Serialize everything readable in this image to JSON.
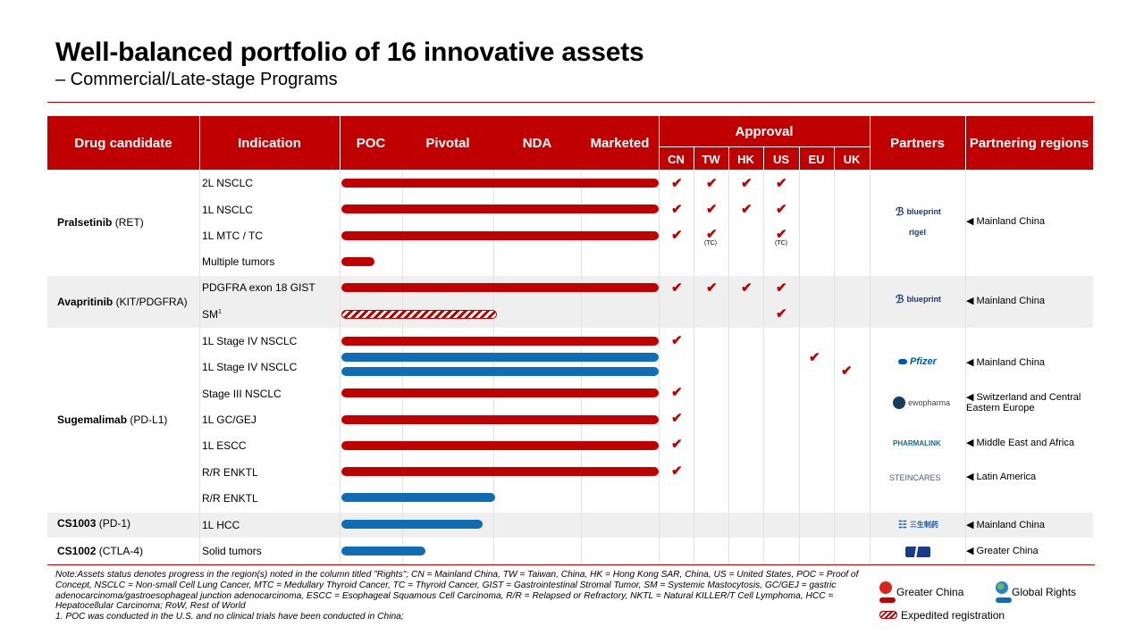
{
  "title": "Well-balanced portfolio of 16 innovative assets",
  "subtitle": "– Commercial/Late-stage Programs",
  "header": {
    "drug_candidate": "Drug candidate",
    "indication": "Indication",
    "poc": "POC",
    "pivotal": "Pivotal",
    "nda": "NDA",
    "marketed": "Marketed",
    "approval": "Approval",
    "regions": [
      "CN",
      "TW",
      "HK",
      "US",
      "EU",
      "UK"
    ],
    "partners": "Partners",
    "partnering_regions": "Partnering regions"
  },
  "drugs": [
    {
      "name": "Pralsetinib",
      "target": "(RET)"
    },
    {
      "name": "Avapritinib",
      "target": "(KIT/PDGFRA)"
    },
    {
      "name": "Sugemalimab",
      "target": "(PD-L1)"
    },
    {
      "name": "CS1003",
      "target": "(PD-1)"
    },
    {
      "name": "CS1002",
      "target": "(CTLA-4)"
    }
  ],
  "indications": [
    {
      "label": "2L NSCLC",
      "progress": "Marketed",
      "approval": [
        "CN",
        "TW",
        "HK",
        "US"
      ]
    },
    {
      "label": "1L NSCLC",
      "progress": "Marketed",
      "approval": [
        "CN",
        "TW",
        "HK",
        "US"
      ]
    },
    {
      "label": "1L MTC / TC",
      "progress": "Marketed",
      "approval": [
        "CN",
        "TW (TC)",
        "US (TC)"
      ]
    },
    {
      "label": "Multiple tumors",
      "progress": "POC"
    },
    {
      "label": "PDGFRA exon 18 GIST",
      "progress": "Marketed",
      "approval": [
        "CN",
        "TW",
        "HK",
        "US"
      ]
    },
    {
      "label": "SM",
      "footnote": "1",
      "progress": "NDA (expedited registration)",
      "approval": [
        "US"
      ]
    },
    {
      "label": "1L Stage IV NSCLC",
      "progress": "Marketed",
      "approval": [
        "CN"
      ]
    },
    {
      "label": "1L Stage IV NSCLC",
      "progress": "Marketed (Global Rights)",
      "approval": [
        "EU",
        "UK"
      ]
    },
    {
      "label": "Stage III NSCLC",
      "progress": "Marketed",
      "approval": [
        "CN"
      ]
    },
    {
      "label": "1L GC/GEJ",
      "progress": "Marketed",
      "approval": [
        "CN"
      ]
    },
    {
      "label": "1L ESCC",
      "progress": "Marketed",
      "approval": [
        "CN"
      ]
    },
    {
      "label": "R/R ENKTL",
      "progress": "Marketed",
      "approval": [
        "CN"
      ]
    },
    {
      "label": "R/R ENKTL",
      "progress": "NDA (Global Rights)"
    },
    {
      "label": "1L HCC",
      "progress": "Pivotal (Global Rights)"
    },
    {
      "label": "Solid tumors",
      "progress": "Pivotal (Global Rights)"
    }
  ],
  "tick_mark": "✔",
  "tc_label": "(TC)",
  "partners": [
    {
      "logo": "blueprint",
      "logo_icon": "blueprint-logo-icon",
      "region": "◀ Mainland China"
    },
    {
      "logo": "rigel",
      "logo_icon": "rigel-logo-icon"
    },
    {
      "logo": "blueprint",
      "logo_icon": "blueprint-logo-icon",
      "region": "◀ Mainland China"
    },
    {
      "logo": "Pfizer",
      "logo_icon": "pfizer-logo-icon",
      "region": "◀ Mainland China"
    },
    {
      "logo": "ewopharma",
      "logo_icon": "ewopharma-logo-icon",
      "region": "◀ Switzerland and Central Eastern Europe"
    },
    {
      "logo": "PHARMALINK",
      "logo_icon": "pharmalink-logo-icon",
      "region": "◀ Middle East and Africa"
    },
    {
      "logo": "STEINCARES",
      "logo_icon": "steincares-logo-icon",
      "region": "◀ Latin America"
    },
    {
      "logo": "三生制药",
      "logo_icon": "3sbio-logo-icon",
      "region": "◀ Mainland China"
    },
    {
      "logo": "",
      "logo_icon": "cs1002-partner-logo-icon",
      "region": "◀ Greater China"
    }
  ],
  "note": "Note:Assets status denotes progress in the region(s) noted in the column titled  \"Rights\"; CN = Mainland China, TW = Taiwan, China, HK = Hong Kong SAR, China, US = United States, POC = Proof of Concept, NSCLC = Non-small Cell Lung Cancer, MTC = Medullary Thyroid Cancer, TC = Thyroid Cancer, GIST = Gastrointestinal Stromal Tumor, SM = Systemic Mastocytosis, GC/GEJ = gastric adenocarcinoma/gastroesophageal junction adenocarcinoma, ESCC = Esophageal Squamous Cell Carcinoma, R/R = Relapsed or Refractory, NKTL = Natural KILLER/T Cell Lymphoma, HCC = Hepatocellular Carcinoma; RoW, Rest of  World",
  "footnote": "1. POC was conducted in the U.S. and no clinical trials have been conducted in China;",
  "legend": {
    "greater_china": "Greater China",
    "global_rights": "Global Rights",
    "expedited": "Expedited registration"
  },
  "colors": {
    "red": "#c00000",
    "blue": "#0f6db5",
    "band": "#efefef"
  }
}
